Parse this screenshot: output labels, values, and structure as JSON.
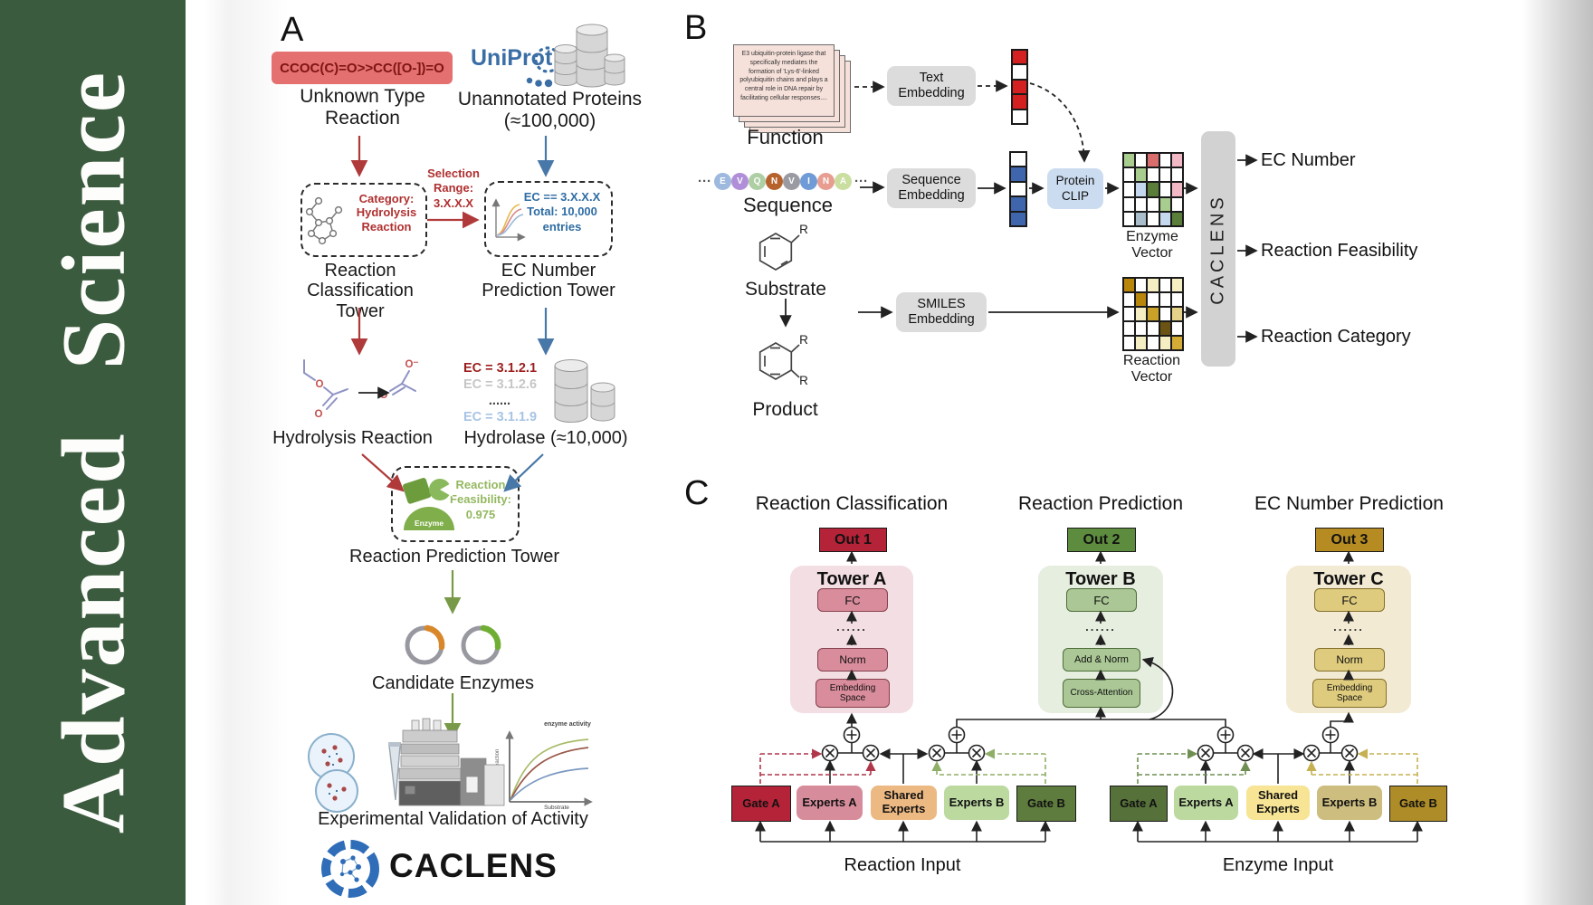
{
  "sidebar": {
    "journal": "Advanced Science",
    "bg_color": "#3b5b3e"
  },
  "colors": {
    "red_arrow": "#b03a3a",
    "blue_arrow": "#4878a8",
    "green_arrow": "#789a48",
    "gate_a_dash_left": "#b0374a",
    "gate_b_dash_left": "#8fae66",
    "gate_a_dash_right": "#6f8f52",
    "gate_b_dash_right": "#c6b051"
  },
  "panelA": {
    "label": "A",
    "smiles": "CCOC(C)=O>>CC([O-])=O",
    "unknown_reaction_label": "Unknown Type Reaction",
    "uniprot_label": "UniProt",
    "unannotated_label": "Unannotated Proteins (≈100,000)",
    "category_label": "Category: Hydrolysis Reaction",
    "selection_label": "Selection Range: 3.X.X.X",
    "ec_filter_label": "EC == 3.X.X.X Total: 10,000 entries",
    "classification_tower_label": "Reaction Classification Tower",
    "ec_tower_label": "EC Number Prediction Tower",
    "ec_list": [
      {
        "text": "EC = 3.1.2.1",
        "color": "#9c1f1f"
      },
      {
        "text": "EC = 3.1.2.6",
        "color": "#c6c6c6"
      },
      {
        "text": "......",
        "color": "#444444"
      },
      {
        "text": "EC = 3.1.1.9",
        "color": "#a8c4e4"
      }
    ],
    "hydrolysis_label": "Hydrolysis Reaction",
    "hydrolase_label": "Hydrolase (≈10,000)",
    "enzyme_badge": "Enzyme",
    "feasibility_label": "Reaction Feasibility: 0.975",
    "prediction_tower_label": "Reaction Prediction Tower",
    "candidates_label": "Candidate Enzymes",
    "validation_label": "Experimental Validation of Activity",
    "activity_plot": {
      "curve_label": "enzyme activity",
      "ylabel": "Rate of reaction",
      "xlabel": "Substrate"
    },
    "brand": "CACLENS",
    "atoms": {
      "ester_o": "O",
      "ester_carbonyl_o": "O",
      "acetate_o_minus": "O⁻",
      "acetate_o": "O"
    }
  },
  "panelB": {
    "label": "B",
    "function_card_text": "E3 ubiquitin-protein ligase that specifically mediates the formation of 'Lys-6'-linked polyubiquitin chains and plays a central role in DNA repair by facilitating cellular responses....",
    "function_label": "Function",
    "ellipsis": "···",
    "beads": [
      {
        "letter": "E",
        "color": "#9db9de"
      },
      {
        "letter": "V",
        "color": "#b08fd8"
      },
      {
        "letter": "Q",
        "color": "#aecfa4"
      },
      {
        "letter": "N",
        "color": "#b5622d"
      },
      {
        "letter": "V",
        "color": "#9a9aa2"
      },
      {
        "letter": "I",
        "color": "#6f9bd6"
      },
      {
        "letter": "N",
        "color": "#e79d90"
      },
      {
        "letter": "A",
        "color": "#cade9f"
      }
    ],
    "sequence_label": "Sequence",
    "substrate_label": "Substrate",
    "product_label": "Product",
    "r_label": "R",
    "text_embedding_label": "Text Embedding",
    "sequence_embedding_label": "Sequence Embedding",
    "smiles_embedding_label": "SMILES Embedding",
    "protein_clip_label": "Protein CLIP",
    "enzyme_vector_label": "Enzyme Vector",
    "reaction_vector_label": "Reaction Vector",
    "caclens_label": "CACLENS",
    "outputs": [
      "EC Number",
      "Reaction Feasibility",
      "Reaction Category"
    ],
    "text_vector": [
      "#d42020",
      "#ffffff",
      "#d42020",
      "#d42020",
      "#ffffff"
    ],
    "seq_vector": [
      "#ffffff",
      "#3f66ac",
      "#ffffff",
      "#3f66ac",
      "#3f66ac"
    ],
    "enzyme_matrix": [
      [
        "#a9cc8f",
        "#ffffff",
        "#d96c6c",
        "#ffffff",
        "#f2b8c6"
      ],
      [
        "#ffffff",
        "#a9cc8f",
        "#ffffff",
        "#ffffff",
        "#ffffff"
      ],
      [
        "#ffffff",
        "#c5d8ee",
        "#5a7d3a",
        "#ffffff",
        "#f2b8c6"
      ],
      [
        "#ffffff",
        "#ffffff",
        "#ffffff",
        "#a9cc8f",
        "#ffffff"
      ],
      [
        "#ffffff",
        "#aabdcb",
        "#ffffff",
        "#c5d8ee",
        "#5a7d3a"
      ]
    ],
    "reaction_matrix": [
      [
        "#b8860b",
        "#ffffff",
        "#f5eec2",
        "#ffffff",
        "#f5eec2"
      ],
      [
        "#ffffff",
        "#b8860b",
        "#ffffff",
        "#ffffff",
        "#ffffff"
      ],
      [
        "#ffffff",
        "#f5eec2",
        "#c9a227",
        "#ffffff",
        "#e5d28a"
      ],
      [
        "#ffffff",
        "#ffffff",
        "#ffffff",
        "#6b5313",
        "#ffffff"
      ],
      [
        "#ffffff",
        "#f5eec2",
        "#ffffff",
        "#f5eec2",
        "#d4ab35"
      ]
    ]
  },
  "panelC": {
    "label": "C",
    "headers": [
      "Reaction Classification",
      "Reaction Prediction",
      "EC Number Prediction"
    ],
    "dots": "......",
    "towers": [
      {
        "out": "Out 1",
        "out_color": "#b52338",
        "title": "Tower A",
        "container_color": "#f3dee3",
        "box_fill": "#d98c9b",
        "box_border": "#84414e",
        "layers": [
          "FC",
          "Norm",
          "Embedding Space"
        ]
      },
      {
        "out": "Out 2",
        "out_color": "#5e8c3e",
        "title": "Tower B",
        "container_color": "#e6eedf",
        "box_fill": "#aac795",
        "box_border": "#4e6e3a",
        "layers": [
          "FC",
          "Add & Norm",
          "Cross-Attention"
        ]
      },
      {
        "out": "Out 3",
        "out_color": "#b68c22",
        "title": "Tower C",
        "container_color": "#f2ead2",
        "box_fill": "#decb7d",
        "box_border": "#84702c",
        "layers": [
          "FC",
          "Norm",
          "Embedding Space"
        ]
      }
    ],
    "moe_groups": [
      {
        "input_label": "Reaction Input",
        "boxes": [
          {
            "label": "Gate A",
            "fill": "#b52338"
          },
          {
            "label": "Experts A",
            "fill": "#d78c9b"
          },
          {
            "label": "Shared Experts",
            "fill": "#ecb983"
          },
          {
            "label": "Experts B",
            "fill": "#bcd9a0"
          },
          {
            "label": "Gate B",
            "fill": "#5e7c3d"
          }
        ]
      },
      {
        "input_label": "Enzyme Input",
        "boxes": [
          {
            "label": "Gate A",
            "fill": "#567139"
          },
          {
            "label": "Experts A",
            "fill": "#bcd9a0"
          },
          {
            "label": "Shared Experts",
            "fill": "#f7e494"
          },
          {
            "label": "Experts B",
            "fill": "#cdbd7f"
          },
          {
            "label": "Gate B",
            "fill": "#ae8d28"
          }
        ]
      }
    ]
  }
}
